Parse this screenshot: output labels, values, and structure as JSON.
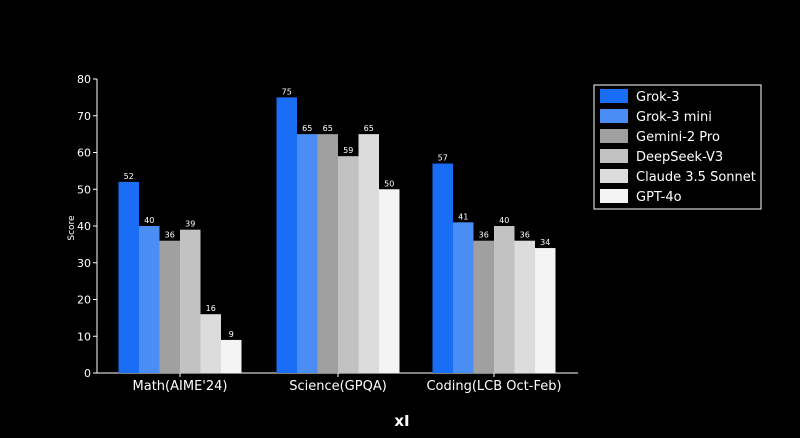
{
  "chart_data": {
    "type": "bar",
    "categories": [
      "Math(AIME'24)",
      "Science(GPQA)",
      "Coding(LCB Oct-Feb)"
    ],
    "ylabel": "Score",
    "xlabel": "",
    "ylim": [
      0,
      80
    ],
    "yticks": [
      0,
      10,
      20,
      30,
      40,
      50,
      60,
      70,
      80
    ],
    "grid": false,
    "legend_position": "top-right",
    "series": [
      {
        "name": "Grok-3",
        "color": "#1a6ef5",
        "values": [
          52,
          75,
          57
        ]
      },
      {
        "name": "Grok-3 mini",
        "color": "#4a8ef5",
        "values": [
          40,
          65,
          41
        ]
      },
      {
        "name": "Gemini-2 Pro",
        "color": "#a0a0a0",
        "values": [
          36,
          65,
          36
        ]
      },
      {
        "name": "DeepSeek-V3",
        "color": "#c2c2c2",
        "values": [
          39,
          59,
          40
        ]
      },
      {
        "name": "Claude 3.5 Sonnet",
        "color": "#dcdcdc",
        "values": [
          16,
          65,
          36
        ]
      },
      {
        "name": "GPT-4o",
        "color": "#f4f4f4",
        "values": [
          9,
          50,
          34
        ]
      }
    ]
  },
  "brand": {
    "text": "xI",
    "icon": "xai-logo"
  },
  "background_color": "#000000"
}
